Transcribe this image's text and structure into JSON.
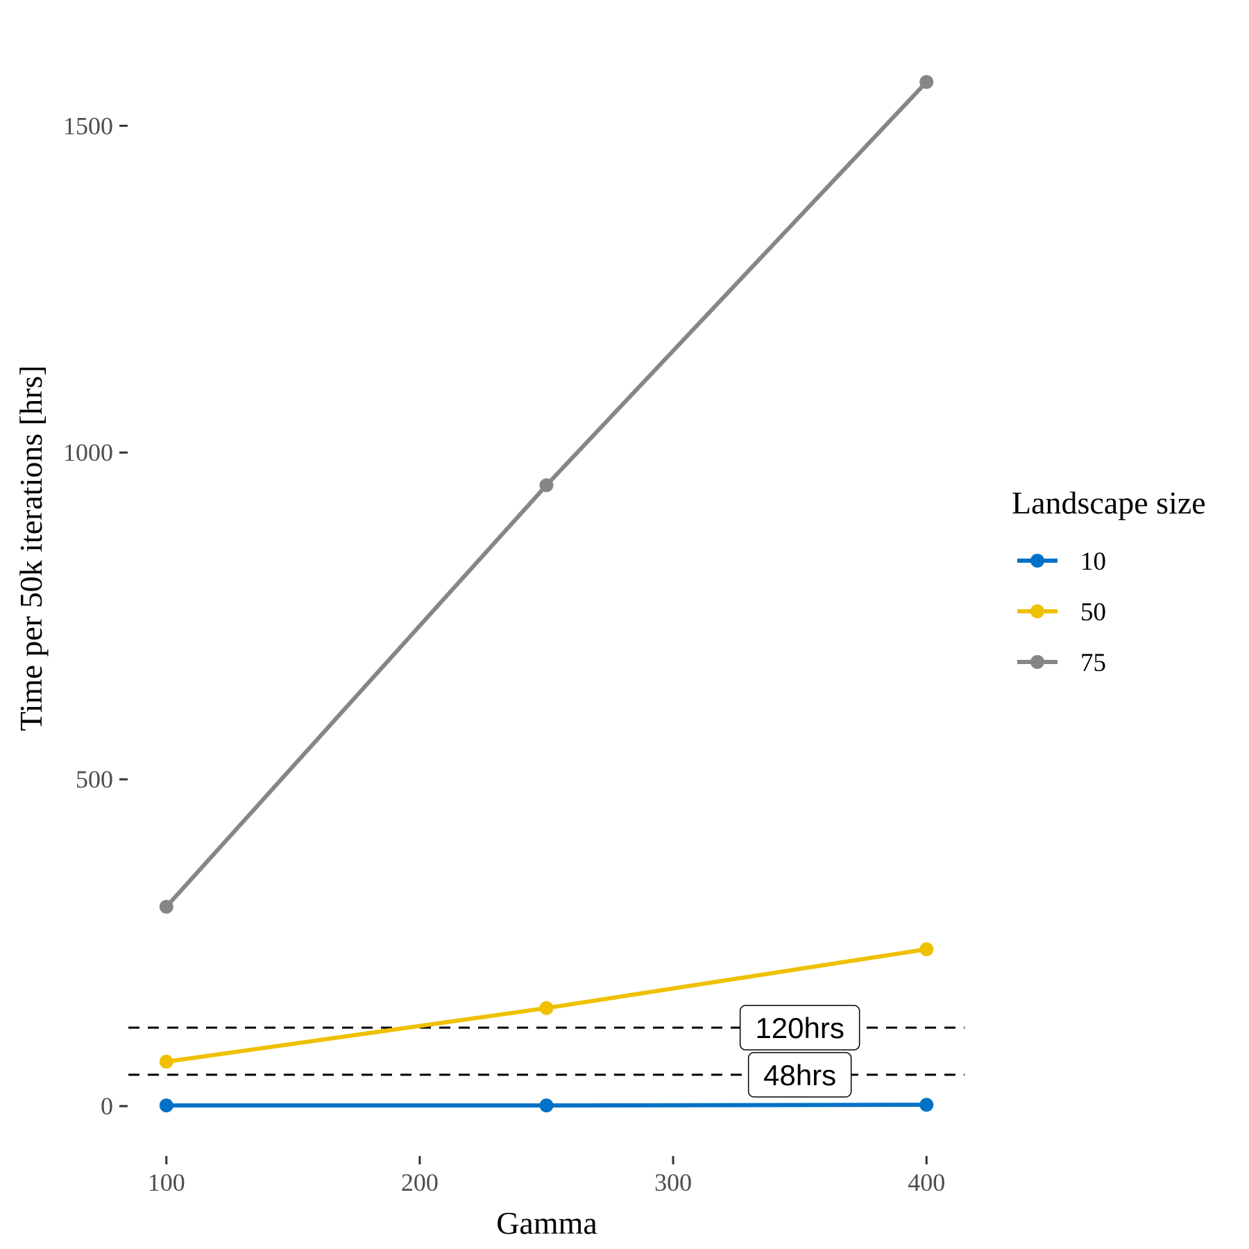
{
  "chart_data": {
    "type": "line",
    "xlabel": "Gamma",
    "ylabel": "Time per 50k iterations [hrs]",
    "xlim": [
      85,
      415
    ],
    "ylim": [
      -70,
      1650
    ],
    "x_ticks": [
      100,
      200,
      300,
      400
    ],
    "y_ticks": [
      0,
      500,
      1000,
      1500
    ],
    "x_tick_labels": [
      "100",
      "200",
      "300",
      "400"
    ],
    "y_tick_labels": [
      "0",
      "500",
      "1000",
      "1500"
    ],
    "legend": {
      "title": "Landscape size",
      "position": "right"
    },
    "grid": false,
    "series": [
      {
        "name": "10",
        "color": "#0072C6",
        "x": [
          100,
          250,
          400
        ],
        "y": [
          1,
          1,
          2
        ]
      },
      {
        "name": "50",
        "color": "#EFC000",
        "x": [
          100,
          250,
          400
        ],
        "y": [
          68,
          150,
          240
        ]
      },
      {
        "name": "75",
        "color": "#868686",
        "x": [
          100,
          250,
          400
        ],
        "y": [
          305,
          950,
          1567
        ]
      }
    ],
    "reference_lines": [
      {
        "y": 120,
        "label": "120hrs",
        "label_x": 350
      },
      {
        "y": 48,
        "label": "48hrs",
        "label_x": 350
      }
    ]
  }
}
